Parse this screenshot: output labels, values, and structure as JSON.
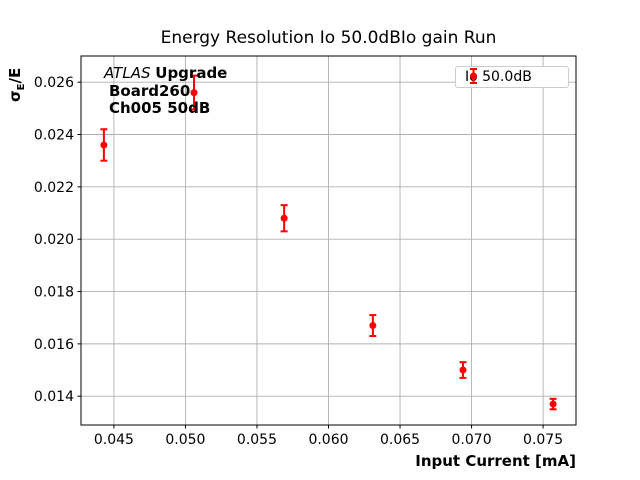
{
  "figure": {
    "title": "Energy Resolution Io 50.0dBIo gain Run",
    "xlabel": "Input Current [mA]",
    "ylabel": {
      "sigma": "σ",
      "subscript": "E",
      "rest": "/E"
    },
    "annotations": {
      "experiment": "ATLAS",
      "experiment_suffix": "Upgrade",
      "board": "Board260",
      "channel": "Ch005 50dB"
    },
    "legend": {
      "label": "Io 50.0dB"
    }
  },
  "chart_data": {
    "type": "scatter",
    "title": "Energy Resolution Io 50.0dBIo gain Run",
    "xlabel": "Input Current [mA]",
    "ylabel": "σ_E/E",
    "series": [
      {
        "name": "Io 50.0dB",
        "color": "#ff0000",
        "marker": "o",
        "x": [
          0.0443,
          0.0506,
          0.0569,
          0.0631,
          0.0694,
          0.0757
        ],
        "y": [
          0.0236,
          0.0256,
          0.0208,
          0.0167,
          0.015,
          0.0137
        ],
        "yerr": [
          0.0006,
          0.00065,
          0.0005,
          0.0004,
          0.0003,
          0.0002
        ]
      }
    ],
    "xticks": [
      0.045,
      0.05,
      0.055,
      0.06,
      0.065,
      0.07,
      0.075
    ],
    "xtick_labels": [
      "0.045",
      "0.050",
      "0.055",
      "0.060",
      "0.065",
      "0.070",
      "0.075"
    ],
    "yticks": [
      0.014,
      0.016,
      0.018,
      0.02,
      0.022,
      0.024,
      0.026
    ],
    "ytick_labels": [
      "0.014",
      "0.016",
      "0.018",
      "0.020",
      "0.022",
      "0.024",
      "0.026"
    ],
    "xlim": [
      0.0427,
      0.0773
    ],
    "ylim": [
      0.0129,
      0.027
    ],
    "grid": true,
    "grid_color": "#b0b0b0",
    "legend_position": "upper right"
  }
}
